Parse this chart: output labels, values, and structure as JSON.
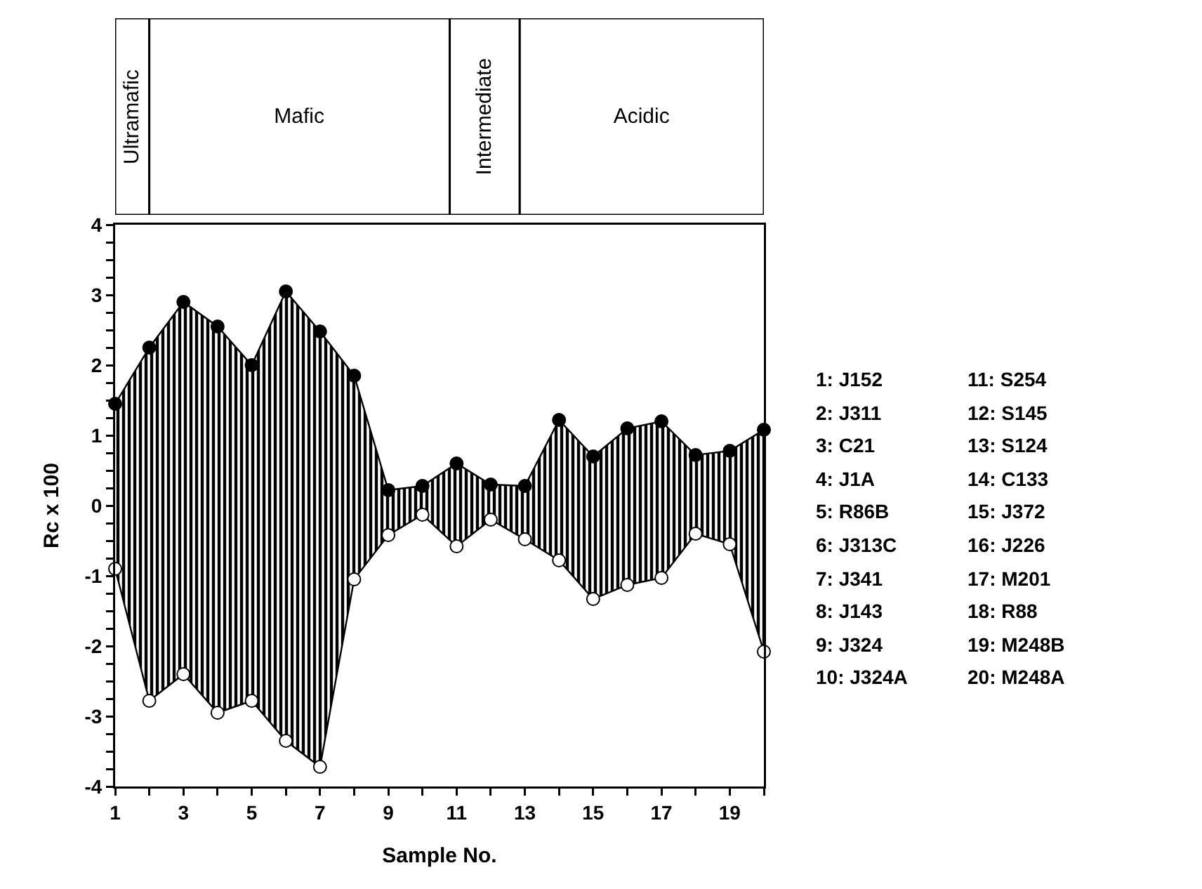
{
  "chart_data": [
    {
      "type": "bar",
      "orientation": "horizontal",
      "categories": [
        null
      ],
      "xlim": [
        1,
        20
      ],
      "tick_labels": false,
      "grid": false,
      "series": [
        {
          "name": "Ultramafic",
          "color": "#ffffff",
          "base": [
            1
          ],
          "values": [
            1
          ]
        },
        {
          "name": "Mafic",
          "color": "#ffffff",
          "base": [
            2
          ],
          "values": [
            8.8
          ]
        },
        {
          "name": "Intermediate",
          "color": "#ffffff",
          "base": [
            10.8
          ],
          "values": [
            2.05
          ]
        },
        {
          "name": "Acidic",
          "color": "#ffffff",
          "base": [
            12.85
          ],
          "values": [
            7.15
          ]
        }
      ]
    },
    {
      "type": "line",
      "xlabel": "Sample No.",
      "ylabel": "Rc x 100",
      "x": [
        1,
        2,
        3,
        4,
        5,
        6,
        7,
        8,
        9,
        10,
        11,
        12,
        13,
        14,
        15,
        16,
        17,
        18,
        19,
        20
      ],
      "series": [
        {
          "color": "#000000",
          "values": [
            1.45,
            2.25,
            2.9,
            2.55,
            2.0,
            3.05,
            2.48,
            1.85,
            0.22,
            0.28,
            0.6,
            0.3,
            0.28,
            1.22,
            0.7,
            1.1,
            1.2,
            0.72,
            0.78,
            1.08
          ],
          "lower": [
            -0.9,
            -2.78,
            -2.4,
            -2.95,
            -2.78,
            -3.35,
            -3.72,
            -1.05,
            -0.42,
            -0.13,
            -0.58,
            -0.2,
            -0.48,
            -0.78,
            -1.33,
            -1.13,
            -1.03,
            -0.4,
            -0.55,
            -2.08
          ],
          "upper": [
            1.45,
            2.25,
            2.9,
            2.55,
            2.0,
            3.05,
            2.48,
            1.85,
            0.22,
            0.28,
            0.6,
            0.3,
            0.28,
            1.22,
            0.7,
            1.1,
            1.2,
            0.72,
            0.78,
            1.08
          ]
        },
        {
          "color": "#ffffff",
          "values": [
            -0.9,
            -2.78,
            -2.4,
            -2.95,
            -2.78,
            -3.35,
            -3.72,
            -1.05,
            -0.42,
            -0.13,
            -0.58,
            -0.2,
            -0.48,
            -0.78,
            -1.33,
            -1.13,
            -1.03,
            -0.4,
            -0.55,
            -2.08
          ]
        }
      ],
      "xlim": [
        1,
        20
      ],
      "xticks": [
        1,
        {
          "value": 2,
          "label": null
        },
        3,
        {
          "value": 4,
          "label": null
        },
        5,
        {
          "value": 6,
          "label": null
        },
        7,
        {
          "value": 8,
          "label": null
        },
        9,
        {
          "value": 10,
          "label": null
        },
        11,
        {
          "value": 12,
          "label": null
        },
        13,
        {
          "value": 14,
          "label": null
        },
        15,
        {
          "value": 16,
          "label": null
        },
        17,
        {
          "value": 18,
          "label": null
        },
        19,
        {
          "value": 20,
          "label": null
        }
      ],
      "ylim": [
        -4,
        4
      ],
      "yticks": [
        -4,
        {
          "value": -3.75,
          "label": null
        },
        {
          "value": -3.5,
          "label": null
        },
        {
          "value": -3.25,
          "label": null
        },
        -3,
        {
          "value": -2.75,
          "label": null
        },
        {
          "value": -2.5,
          "label": null
        },
        {
          "value": -2.25,
          "label": null
        },
        -2,
        {
          "value": -1.75,
          "label": null
        },
        {
          "value": -1.5,
          "label": null
        },
        {
          "value": -1.25,
          "label": null
        },
        -1,
        {
          "value": -0.75,
          "label": null
        },
        {
          "value": -0.5,
          "label": null
        },
        {
          "value": -0.25,
          "label": null
        },
        0,
        {
          "value": 0.25,
          "label": null
        },
        {
          "value": 0.5,
          "label": null
        },
        {
          "value": 0.75,
          "label": null
        },
        1,
        {
          "value": 1.25,
          "label": null
        },
        {
          "value": 1.5,
          "label": null
        },
        {
          "value": 1.75,
          "label": null
        },
        2,
        {
          "value": 2.25,
          "label": null
        },
        {
          "value": 2.5,
          "label": null
        },
        {
          "value": 2.75,
          "label": null
        },
        3,
        {
          "value": 3.25,
          "label": null
        },
        {
          "value": 3.5,
          "label": null
        },
        {
          "value": 3.75,
          "label": null
        },
        4
      ],
      "marker": "circle",
      "grid": false,
      "annotations": [
        "1: J152",
        "2: J311",
        "3: C21",
        "4: J1A",
        "5: R86B",
        "6: J313C",
        "7: J341",
        "8: J143",
        "9: J324",
        "10: J324A",
        "11: S254",
        "12: S145",
        "13: S124",
        "14: C133",
        "15: J372",
        "16: J226",
        "17: M201",
        "18: R88",
        "19: M248B",
        "20: M248A"
      ]
    }
  ]
}
